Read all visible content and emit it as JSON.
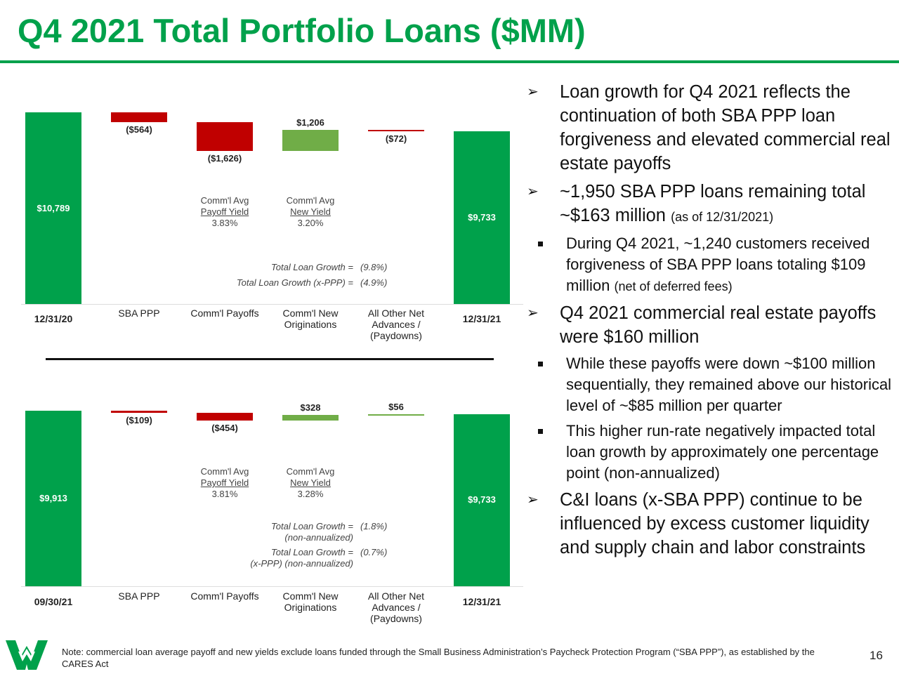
{
  "title": "Q4 2021 Total Portfolio Loans ($MM)",
  "chart_data": [
    {
      "type": "waterfall",
      "categories": [
        "12/31/20",
        "SBA PPP",
        "Comm'l Payoffs",
        "Comm'l New Originations",
        "All Other Net Advances / (Paydowns)",
        "12/31/21"
      ],
      "values": [
        10789,
        -564,
        -1626,
        1206,
        -72,
        9733
      ],
      "value_labels": [
        "$10,789",
        "($564)",
        "($1,626)",
        "$1,206",
        "($72)",
        "$9,733"
      ],
      "colors": {
        "total": "#00a14b",
        "decrease": "#c00000",
        "increase": "#70ad47"
      },
      "yield_annotations": [
        {
          "lines": [
            "Comm'l Avg",
            "Payoff Yield",
            "3.83%"
          ]
        },
        {
          "lines": [
            "Comm'l Avg",
            "New Yield",
            "3.20%"
          ]
        }
      ],
      "growth_annotations": [
        {
          "label": [
            "Total Loan Growth ="
          ],
          "value": "(9.8%)"
        },
        {
          "label": [
            "Total Loan Growth (x-PPP) ="
          ],
          "value": "(4.9%)"
        }
      ]
    },
    {
      "type": "waterfall",
      "categories": [
        "09/30/21",
        "SBA PPP",
        "Comm'l Payoffs",
        "Comm'l New Originations",
        "All Other Net Advances / (Paydowns)",
        "12/31/21"
      ],
      "values": [
        9913,
        -109,
        -454,
        328,
        56,
        9733
      ],
      "value_labels": [
        "$9,913",
        "($109)",
        "($454)",
        "$328",
        "$56",
        "$9,733"
      ],
      "colors": {
        "total": "#00a14b",
        "decrease": "#c00000",
        "increase": "#70ad47"
      },
      "yield_annotations": [
        {
          "lines": [
            "Comm'l Avg",
            "Payoff Yield",
            "3.81%"
          ]
        },
        {
          "lines": [
            "Comm'l Avg",
            "New Yield",
            "3.28%"
          ]
        }
      ],
      "growth_annotations": [
        {
          "label": [
            "Total Loan Growth =",
            "(non-annualized)"
          ],
          "value": "(1.8%)"
        },
        {
          "label": [
            "Total Loan Growth =",
            "(x-PPP) (non-annualized)"
          ],
          "value": "(0.7%)"
        }
      ]
    }
  ],
  "bullets": [
    {
      "text": "Loan growth for Q4 2021 reflects the continuation of both SBA PPP loan forgiveness and elevated commercial real estate payoffs",
      "sub": []
    },
    {
      "text": "~1,950 SBA PPP loans remaining total ~$163 million",
      "note": "(as of 12/31/2021)",
      "sub": [
        {
          "text": "During Q4 2021, ~1,240 customers received forgiveness of SBA PPP loans totaling $109 million",
          "note": "(net of deferred fees)"
        }
      ]
    },
    {
      "text": "Q4 2021 commercial real estate payoffs were $160 million",
      "sub": [
        {
          "text": "While these payoffs were down ~$100 million sequentially, they remained above our historical level of ~$85 million per quarter"
        },
        {
          "text": "This higher run-rate negatively impacted total loan growth by approximately one percentage point (non-annualized)"
        }
      ]
    },
    {
      "text": "C&I loans (x-SBA PPP) continue to be influenced by excess customer liquidity and supply chain and labor constraints",
      "sub": []
    }
  ],
  "footnote": "Note: commercial loan average payoff and new yields exclude loans funded through the Small Business Administration’s Paycheck Protection Program (“SBA PPP”), as established by the CARES Act",
  "page_number": "16"
}
